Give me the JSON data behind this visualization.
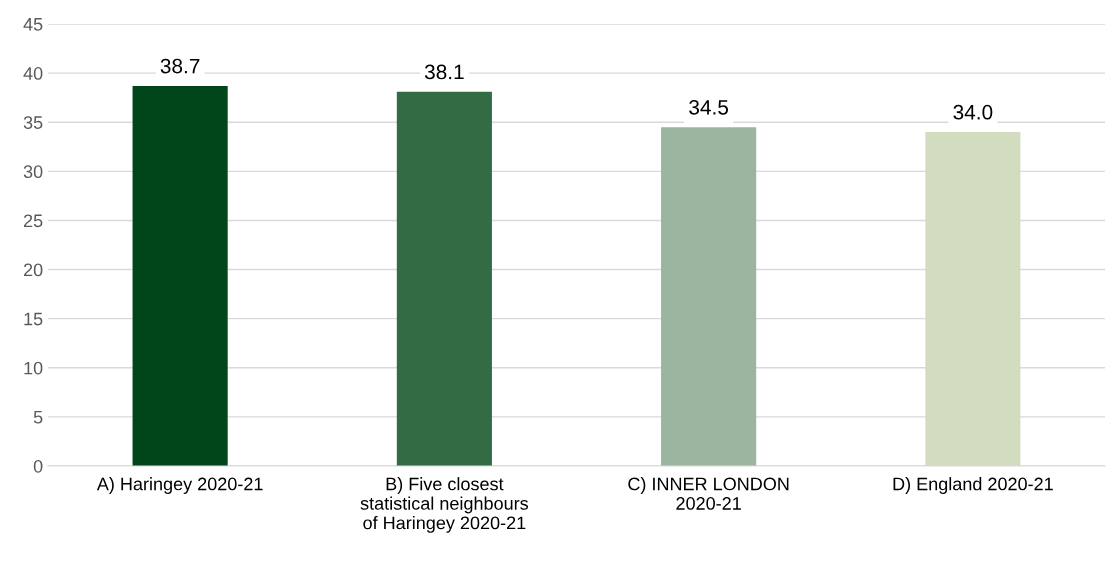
{
  "chart_data": {
    "type": "bar",
    "categories": [
      "A) Haringey 2020-21",
      "B) Five closest\nstatistical neighbours\nof Haringey 2020-21",
      "C) INNER LONDON\n2020-21",
      "D) England 2020-21"
    ],
    "values": [
      38.7,
      38.1,
      34.5,
      34.0
    ],
    "colors": [
      "#00461a",
      "#336b45",
      "#9bb5a0",
      "#d2dcbf"
    ],
    "value_labels": [
      "38.7",
      "38.1",
      "34.5",
      "34.0"
    ],
    "ylim": [
      0,
      45
    ],
    "yticks": [
      0,
      5,
      10,
      15,
      20,
      25,
      30,
      35,
      40,
      45
    ],
    "grid": "y",
    "legend": false
  }
}
